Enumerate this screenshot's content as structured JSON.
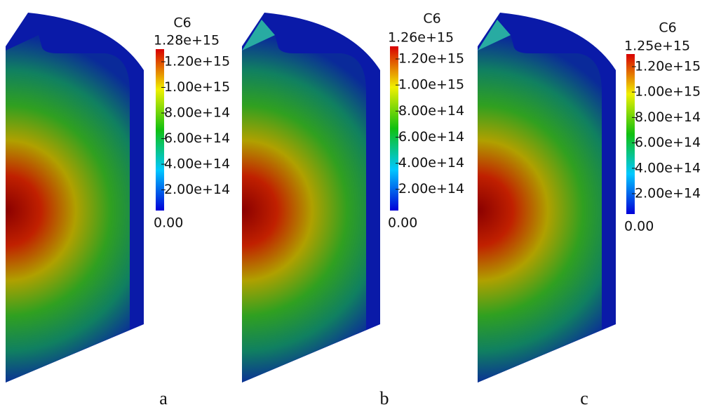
{
  "panels": [
    {
      "title": "C6",
      "max": "1.28e+15",
      "ticks": [
        "1.20e+15",
        "1.00e+15",
        "8.00e+14",
        "6.00e+14",
        "4.00e+14",
        "2.00e+14"
      ],
      "min": "0.00",
      "caption": "a"
    },
    {
      "title": "C6",
      "max": "1.26e+15",
      "ticks": [
        "1.20e+15",
        "1.00e+15",
        "8.00e+14",
        "6.00e+14",
        "4.00e+14",
        "2.00e+14"
      ],
      "min": "0.00",
      "caption": "b"
    },
    {
      "title": "C6",
      "max": "1.25e+15",
      "ticks": [
        "1.20e+15",
        "1.00e+15",
        "8.00e+14",
        "6.00e+14",
        "4.00e+14",
        "2.00e+14"
      ],
      "min": "0.00",
      "caption": "c"
    }
  ]
}
